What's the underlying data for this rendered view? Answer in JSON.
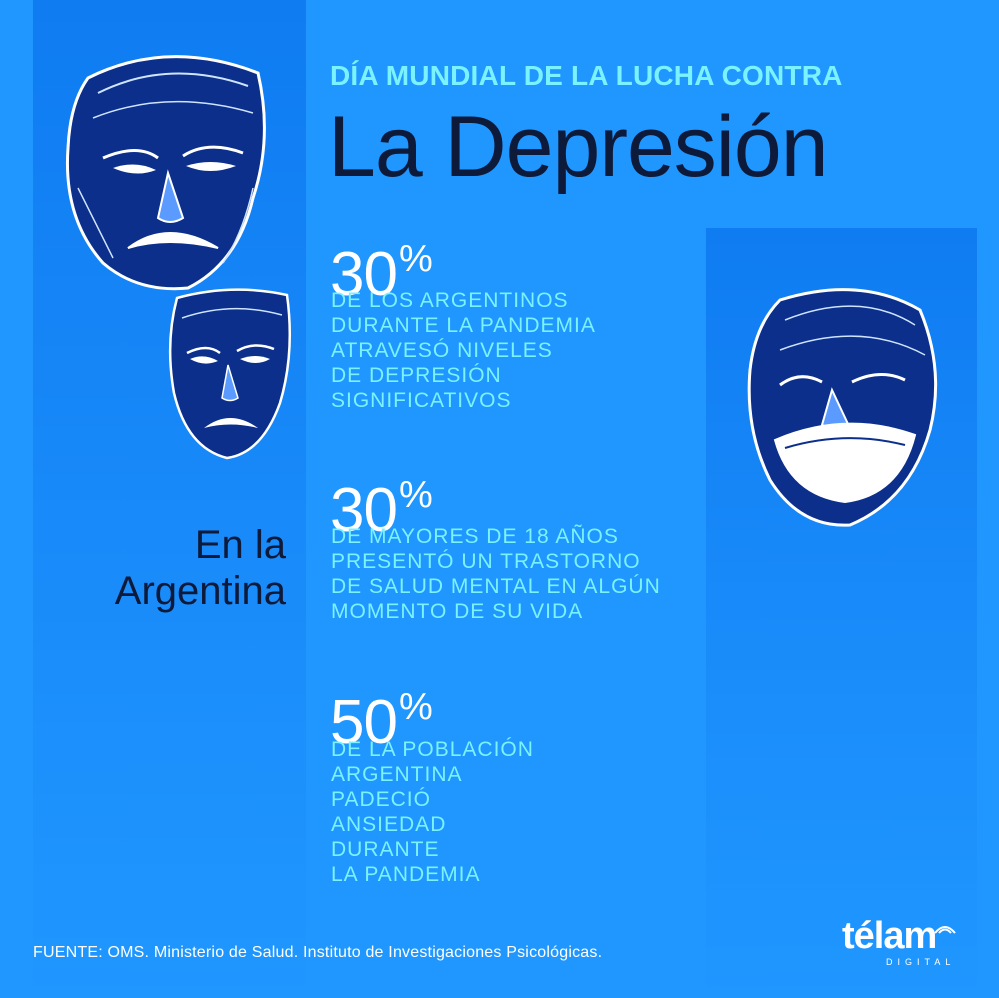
{
  "header": {
    "supertitle": "DÍA MUNDIAL DE LA LUCHA CONTRA",
    "title": "La Depresión"
  },
  "region_label": [
    "En la",
    "Argentina"
  ],
  "stats": [
    {
      "value": "30",
      "unit": "%",
      "lines": [
        "DE LOS ARGENTINOS",
        "DURANTE LA PANDEMIA",
        "ATRAVESÓ NIVELES",
        "DE DEPRESIÓN",
        "SIGNIFICATIVOS"
      ]
    },
    {
      "value": "30",
      "unit": "%",
      "lines": [
        "DE MAYORES DE 18 AÑOS",
        "PRESENTÓ UN TRASTORNO",
        "DE SALUD MENTAL EN ALGÚN",
        "MOMENTO DE SU VIDA"
      ]
    },
    {
      "value": "50",
      "unit": "%",
      "lines": [
        "DE LA POBLACIÓN",
        "ARGENTINA",
        "PADECIÓ",
        "ANSIEDAD",
        "DURANTE",
        "LA PANDEMIA"
      ]
    }
  ],
  "source": "FUENTE: OMS. Ministerio de Salud. Instituto de Investigaciones Psicológicas.",
  "logo": {
    "word": "télam",
    "sub": "DIGITAL"
  },
  "colors": {
    "background": "#1f97ff",
    "panel": "#0f7cf2",
    "accent_cyan": "#7af2ff",
    "title_dark": "#0d1a3a",
    "white": "#ffffff"
  }
}
